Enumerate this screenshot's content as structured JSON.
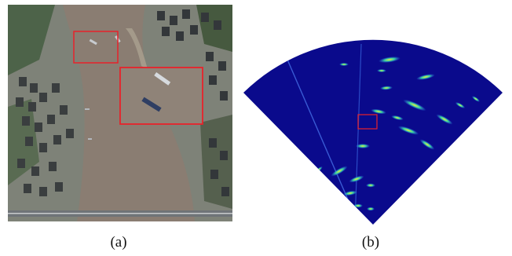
{
  "figure": {
    "panel_a": {
      "caption": "(a)"
    },
    "panel_b": {
      "caption": "(b)"
    },
    "colors": {
      "river": "#8a7d72",
      "radar_background": "#0a0a8c",
      "radar_echo_hot": "#ffe23a",
      "radar_echo_warm": "#37d6a0",
      "radar_echo_cool": "#2f7df7",
      "highlight_box": "#e8222a",
      "bridge": "#6f7478",
      "greenery": "#3f5a3a"
    }
  }
}
